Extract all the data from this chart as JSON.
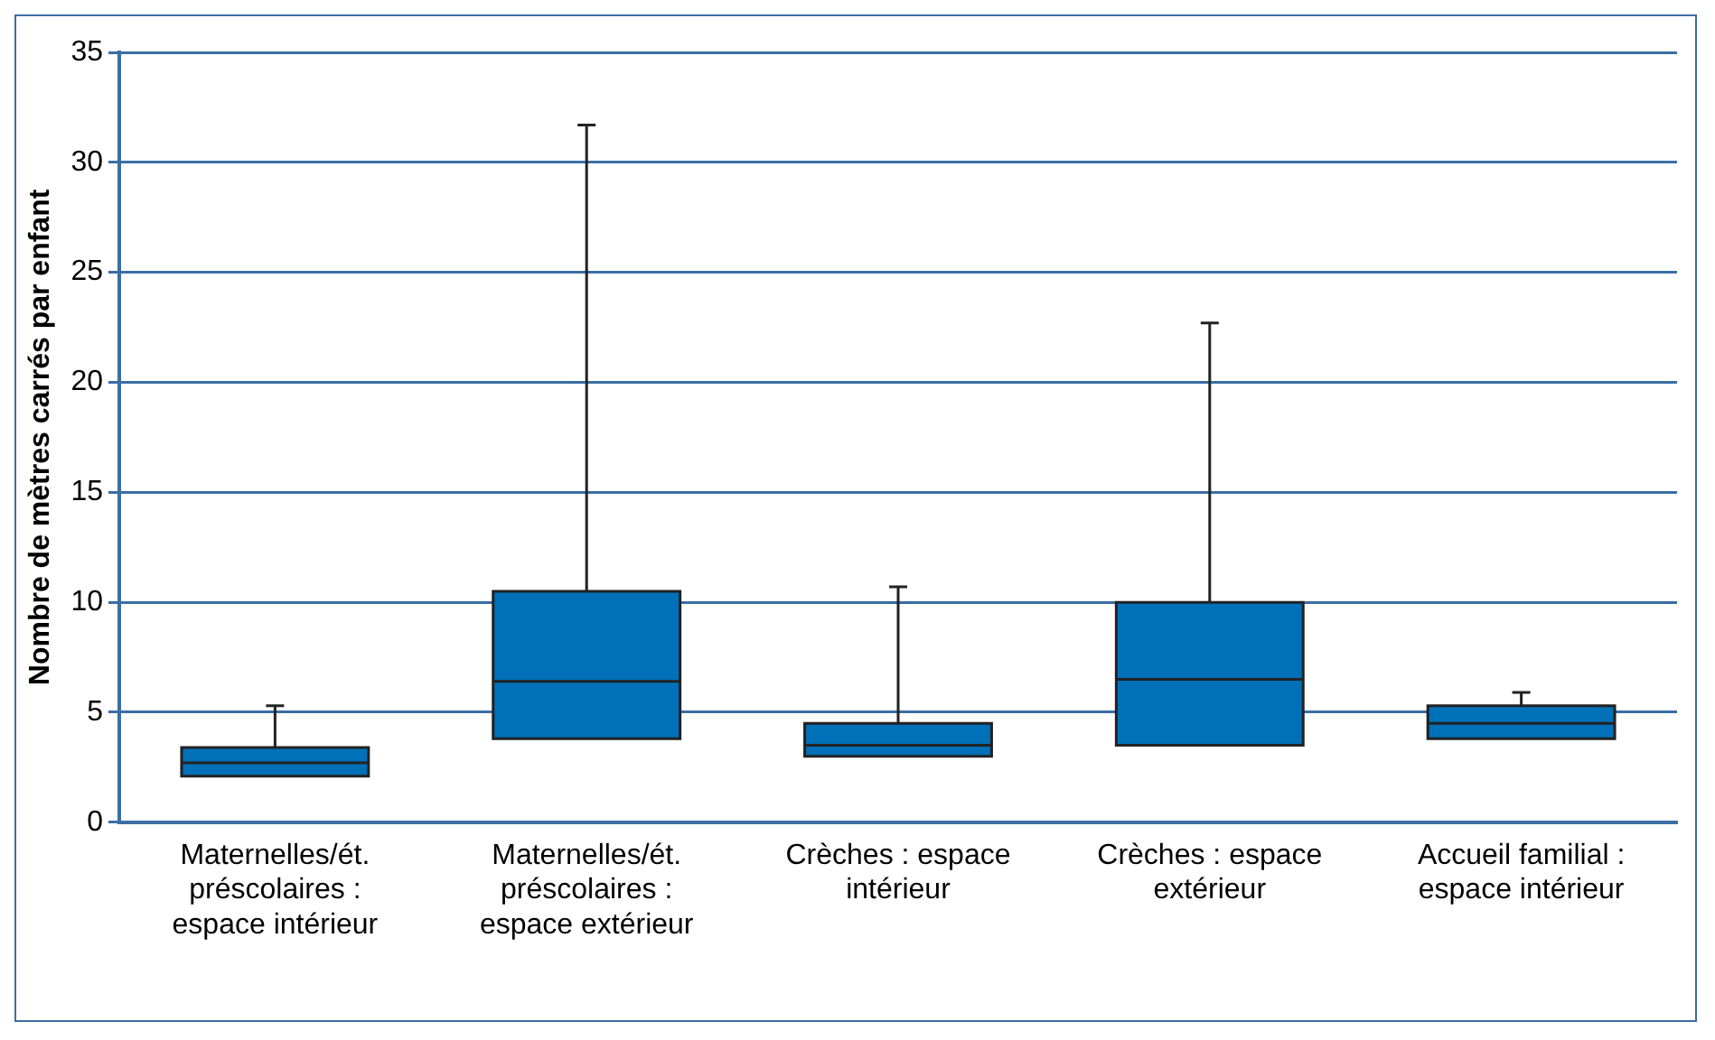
{
  "chart_data": {
    "type": "box",
    "ylabel": "Nombre de mètres carrés par enfant",
    "categories": [
      "Maternelles/ét. préscolaires : espace intérieur",
      "Maternelles/ét. préscolaires : espace extérieur",
      "Crèches : espace intérieur",
      "Crèches : espace extérieur",
      "Accueil familial : espace intérieur"
    ],
    "boxes": [
      {
        "low": 2.1,
        "q1": 2.1,
        "median": 2.7,
        "q3": 3.4,
        "high": 5.3
      },
      {
        "low": 3.8,
        "q1": 3.8,
        "median": 6.4,
        "q3": 10.5,
        "high": 31.7
      },
      {
        "low": 3.0,
        "q1": 3.0,
        "median": 3.5,
        "q3": 4.5,
        "high": 10.7
      },
      {
        "low": 3.5,
        "q1": 3.5,
        "median": 6.5,
        "q3": 10.0,
        "high": 22.7
      },
      {
        "low": 3.8,
        "q1": 3.8,
        "median": 4.5,
        "q3": 5.3,
        "high": 5.9
      }
    ],
    "color": "#0070b8",
    "ylim": [
      0,
      35
    ],
    "yticks": [
      0,
      5,
      10,
      15,
      20,
      25,
      30,
      35
    ],
    "grid": "y",
    "legend": false
  }
}
